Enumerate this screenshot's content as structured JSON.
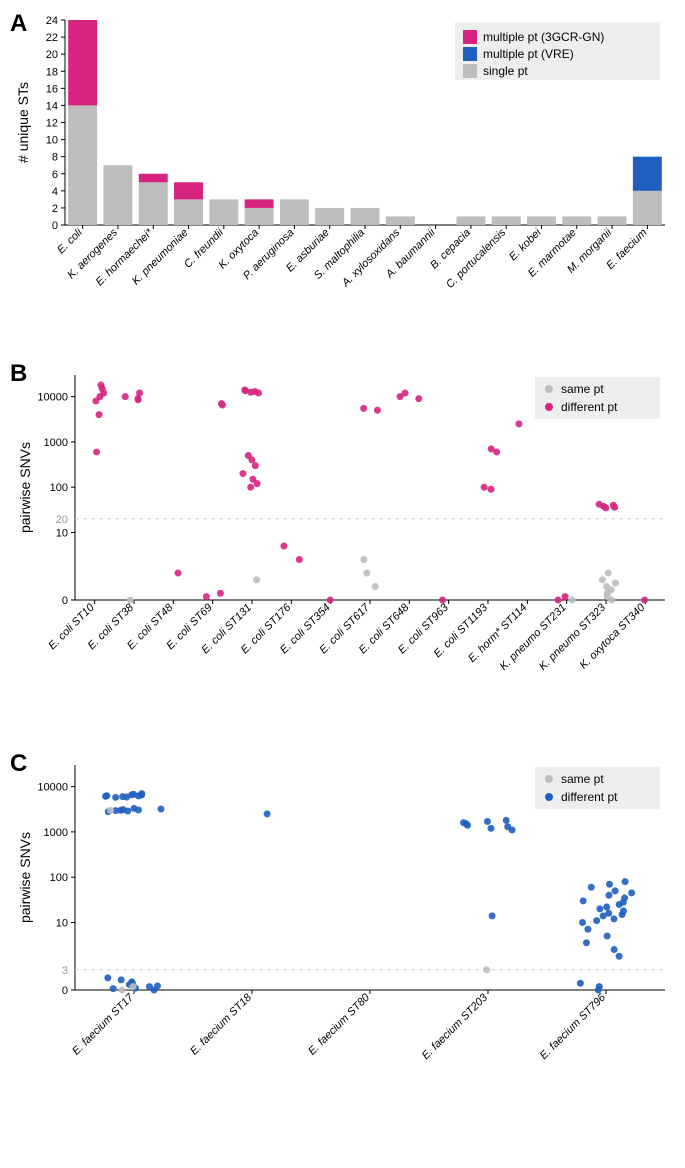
{
  "colors": {
    "magenta": "#d6237f",
    "blue": "#1f5fbf",
    "grey": "#bdbdbd",
    "legend_bg": "#eeeeee",
    "grid": "#cccccc",
    "text": "#000000",
    "threshold_text": "#999999"
  },
  "panelA": {
    "label": "A",
    "ylabel": "# unique STs",
    "ylim": [
      0,
      24
    ],
    "ytick_step": 2,
    "bar_width": 0.82,
    "legend": {
      "items": [
        {
          "label": "multiple pt (3GCR-GN)",
          "color": "#d6237f"
        },
        {
          "label": "multiple pt (VRE)",
          "color": "#1f5fbf"
        },
        {
          "label": "single pt",
          "color": "#bdbdbd"
        }
      ]
    },
    "categories": [
      "E. coli",
      "K. aerogenes",
      "E. hormaechei*",
      "K. pneumoniae",
      "C. freundii",
      "K. oxytoca",
      "P. aeruginosa",
      "E. asburiae",
      "S. maltophilia",
      "A. xylosoxidans",
      "A. baumannii",
      "B. cepacia",
      "C. portucalensis",
      "E. kobei",
      "E. marmotae",
      "M. morganii",
      "E. faecium"
    ],
    "stacks": [
      {
        "single": 14,
        "multi_gn": 10,
        "multi_vre": 0
      },
      {
        "single": 7,
        "multi_gn": 0,
        "multi_vre": 0
      },
      {
        "single": 5,
        "multi_gn": 1,
        "multi_vre": 0
      },
      {
        "single": 3,
        "multi_gn": 2,
        "multi_vre": 0
      },
      {
        "single": 3,
        "multi_gn": 0,
        "multi_vre": 0
      },
      {
        "single": 2,
        "multi_gn": 1,
        "multi_vre": 0
      },
      {
        "single": 3,
        "multi_gn": 0,
        "multi_vre": 0
      },
      {
        "single": 2,
        "multi_gn": 0,
        "multi_vre": 0
      },
      {
        "single": 2,
        "multi_gn": 0,
        "multi_vre": 0
      },
      {
        "single": 1,
        "multi_gn": 0,
        "multi_vre": 0
      },
      {
        "single": 0,
        "multi_gn": 0,
        "multi_vre": 0
      },
      {
        "single": 1,
        "multi_gn": 0,
        "multi_vre": 0
      },
      {
        "single": 1,
        "multi_gn": 0,
        "multi_vre": 0
      },
      {
        "single": 1,
        "multi_gn": 0,
        "multi_vre": 0
      },
      {
        "single": 1,
        "multi_gn": 0,
        "multi_vre": 0
      },
      {
        "single": 1,
        "multi_gn": 0,
        "multi_vre": 0
      },
      {
        "single": 4,
        "multi_gn": 0,
        "multi_vre": 4
      }
    ]
  },
  "panelB": {
    "label": "B",
    "ylabel": "pairwise SNVs",
    "threshold": 20,
    "ylim": [
      0,
      30000
    ],
    "linear_max": 10,
    "yticks_linear": [
      0,
      10
    ],
    "yticks_log": [
      100,
      1000,
      10000
    ],
    "threshold_label": "20",
    "legend": {
      "items": [
        {
          "label": "same pt",
          "color": "#bdbdbd"
        },
        {
          "label": "different pt",
          "color": "#d6237f"
        }
      ]
    },
    "categories": [
      "E. coli ST10",
      "E. coli ST38",
      "E. coli ST48",
      "E. coli ST69",
      "E. coli ST131",
      "E. coli ST176",
      "E. coli ST354",
      "E. coli ST617",
      "E. coli ST648",
      "E. coli ST963",
      "E. coli ST1193",
      "E. horm* ST114",
      "K. pneumo ST231",
      "K. pneumo ST323",
      "K. oxytoca ST340"
    ],
    "points": [
      {
        "cat": 0,
        "y": 15000,
        "grp": "diff"
      },
      {
        "cat": 0,
        "y": 18000,
        "grp": "diff"
      },
      {
        "cat": 0,
        "y": 12000,
        "grp": "diff"
      },
      {
        "cat": 0,
        "y": 10000,
        "grp": "diff"
      },
      {
        "cat": 0,
        "y": 8000,
        "grp": "diff"
      },
      {
        "cat": 0,
        "y": 4000,
        "grp": "diff"
      },
      {
        "cat": 0,
        "y": 600,
        "grp": "diff"
      },
      {
        "cat": 1,
        "y": 10000,
        "grp": "diff"
      },
      {
        "cat": 1,
        "y": 9000,
        "grp": "diff"
      },
      {
        "cat": 1,
        "y": 12000,
        "grp": "diff"
      },
      {
        "cat": 1,
        "y": 8500,
        "grp": "diff"
      },
      {
        "cat": 1,
        "y": 0,
        "grp": "same"
      },
      {
        "cat": 2,
        "y": 4,
        "grp": "diff"
      },
      {
        "cat": 3,
        "y": 7000,
        "grp": "diff"
      },
      {
        "cat": 3,
        "y": 6500,
        "grp": "diff"
      },
      {
        "cat": 3,
        "y": 1,
        "grp": "diff"
      },
      {
        "cat": 3,
        "y": 0.5,
        "grp": "diff"
      },
      {
        "cat": 4,
        "y": 14000,
        "grp": "diff"
      },
      {
        "cat": 4,
        "y": 13000,
        "grp": "diff"
      },
      {
        "cat": 4,
        "y": 12000,
        "grp": "diff"
      },
      {
        "cat": 4,
        "y": 13500,
        "grp": "diff"
      },
      {
        "cat": 4,
        "y": 12500,
        "grp": "diff"
      },
      {
        "cat": 4,
        "y": 500,
        "grp": "diff"
      },
      {
        "cat": 4,
        "y": 400,
        "grp": "diff"
      },
      {
        "cat": 4,
        "y": 300,
        "grp": "diff"
      },
      {
        "cat": 4,
        "y": 200,
        "grp": "diff"
      },
      {
        "cat": 4,
        "y": 150,
        "grp": "diff"
      },
      {
        "cat": 4,
        "y": 120,
        "grp": "diff"
      },
      {
        "cat": 4,
        "y": 100,
        "grp": "diff"
      },
      {
        "cat": 4,
        "y": 3,
        "grp": "same"
      },
      {
        "cat": 5,
        "y": 8,
        "grp": "diff"
      },
      {
        "cat": 5,
        "y": 6,
        "grp": "diff"
      },
      {
        "cat": 6,
        "y": 0,
        "grp": "diff"
      },
      {
        "cat": 7,
        "y": 5500,
        "grp": "diff"
      },
      {
        "cat": 7,
        "y": 5000,
        "grp": "diff"
      },
      {
        "cat": 7,
        "y": 6,
        "grp": "same"
      },
      {
        "cat": 7,
        "y": 4,
        "grp": "same"
      },
      {
        "cat": 7,
        "y": 2,
        "grp": "same"
      },
      {
        "cat": 8,
        "y": 12000,
        "grp": "diff"
      },
      {
        "cat": 8,
        "y": 10000,
        "grp": "diff"
      },
      {
        "cat": 8,
        "y": 9000,
        "grp": "diff"
      },
      {
        "cat": 9,
        "y": 0,
        "grp": "diff"
      },
      {
        "cat": 10,
        "y": 700,
        "grp": "diff"
      },
      {
        "cat": 10,
        "y": 600,
        "grp": "diff"
      },
      {
        "cat": 10,
        "y": 100,
        "grp": "diff"
      },
      {
        "cat": 10,
        "y": 90,
        "grp": "diff"
      },
      {
        "cat": 11,
        "y": 2500,
        "grp": "diff"
      },
      {
        "cat": 12,
        "y": 0,
        "grp": "diff"
      },
      {
        "cat": 12,
        "y": 0.5,
        "grp": "diff"
      },
      {
        "cat": 12,
        "y": 0,
        "grp": "same"
      },
      {
        "cat": 13,
        "y": 40,
        "grp": "diff"
      },
      {
        "cat": 13,
        "y": 38,
        "grp": "diff"
      },
      {
        "cat": 13,
        "y": 35,
        "grp": "diff"
      },
      {
        "cat": 13,
        "y": 42,
        "grp": "diff"
      },
      {
        "cat": 13,
        "y": 36,
        "grp": "diff"
      },
      {
        "cat": 13,
        "y": 4,
        "grp": "same"
      },
      {
        "cat": 13,
        "y": 3,
        "grp": "same"
      },
      {
        "cat": 13,
        "y": 2,
        "grp": "same"
      },
      {
        "cat": 13,
        "y": 1,
        "grp": "same"
      },
      {
        "cat": 13,
        "y": 0,
        "grp": "same"
      },
      {
        "cat": 13,
        "y": 0.5,
        "grp": "same"
      },
      {
        "cat": 13,
        "y": 1.5,
        "grp": "same"
      },
      {
        "cat": 13,
        "y": 2.5,
        "grp": "same"
      },
      {
        "cat": 14,
        "y": 0,
        "grp": "diff"
      }
    ]
  },
  "panelC": {
    "label": "C",
    "ylabel": "pairwise SNVs",
    "threshold": 3,
    "ylim": [
      0,
      30000
    ],
    "linear_max": 10,
    "yticks_linear": [
      0,
      10
    ],
    "yticks_log": [
      100,
      1000,
      10000
    ],
    "threshold_label": "3",
    "legend": {
      "items": [
        {
          "label": "same pt",
          "color": "#bdbdbd"
        },
        {
          "label": "different pt",
          "color": "#1f5fbf"
        }
      ]
    },
    "categories": [
      "E. faecium ST17",
      "E. faecium ST18",
      "E. faecium ST80",
      "E. faecium ST203",
      "E. faecium ST796"
    ],
    "points": [
      {
        "cat": 0,
        "y": 6500,
        "grp": "diff"
      },
      {
        "cat": 0,
        "y": 6000,
        "grp": "diff"
      },
      {
        "cat": 0,
        "y": 7000,
        "grp": "diff"
      },
      {
        "cat": 0,
        "y": 6200,
        "grp": "diff"
      },
      {
        "cat": 0,
        "y": 5800,
        "grp": "diff"
      },
      {
        "cat": 0,
        "y": 6800,
        "grp": "diff"
      },
      {
        "cat": 0,
        "y": 6100,
        "grp": "diff"
      },
      {
        "cat": 0,
        "y": 6300,
        "grp": "diff"
      },
      {
        "cat": 0,
        "y": 6600,
        "grp": "diff"
      },
      {
        "cat": 0,
        "y": 5900,
        "grp": "diff"
      },
      {
        "cat": 0,
        "y": 3000,
        "grp": "diff"
      },
      {
        "cat": 0,
        "y": 3200,
        "grp": "diff"
      },
      {
        "cat": 0,
        "y": 2800,
        "grp": "diff"
      },
      {
        "cat": 0,
        "y": 3100,
        "grp": "diff"
      },
      {
        "cat": 0,
        "y": 2900,
        "grp": "diff"
      },
      {
        "cat": 0,
        "y": 3300,
        "grp": "diff"
      },
      {
        "cat": 0,
        "y": 3050,
        "grp": "diff"
      },
      {
        "cat": 0,
        "y": 2950,
        "grp": "diff"
      },
      {
        "cat": 0,
        "y": 3000,
        "grp": "same"
      },
      {
        "cat": 0,
        "y": 1,
        "grp": "diff"
      },
      {
        "cat": 0,
        "y": 0.5,
        "grp": "diff"
      },
      {
        "cat": 0,
        "y": 1.5,
        "grp": "diff"
      },
      {
        "cat": 0,
        "y": 0.8,
        "grp": "diff"
      },
      {
        "cat": 0,
        "y": 0.3,
        "grp": "diff"
      },
      {
        "cat": 0,
        "y": 1.2,
        "grp": "diff"
      },
      {
        "cat": 0,
        "y": 0,
        "grp": "diff"
      },
      {
        "cat": 0,
        "y": 0.6,
        "grp": "diff"
      },
      {
        "cat": 0,
        "y": 1.8,
        "grp": "diff"
      },
      {
        "cat": 0,
        "y": 0.2,
        "grp": "diff"
      },
      {
        "cat": 0,
        "y": 0,
        "grp": "same"
      },
      {
        "cat": 0,
        "y": 0.5,
        "grp": "same"
      },
      {
        "cat": 1,
        "y": 2500,
        "grp": "diff"
      },
      {
        "cat": 3,
        "y": 1500,
        "grp": "diff"
      },
      {
        "cat": 3,
        "y": 1400,
        "grp": "diff"
      },
      {
        "cat": 3,
        "y": 1600,
        "grp": "diff"
      },
      {
        "cat": 3,
        "y": 1300,
        "grp": "diff"
      },
      {
        "cat": 3,
        "y": 1700,
        "grp": "diff"
      },
      {
        "cat": 3,
        "y": 1200,
        "grp": "diff"
      },
      {
        "cat": 3,
        "y": 1800,
        "grp": "diff"
      },
      {
        "cat": 3,
        "y": 1100,
        "grp": "diff"
      },
      {
        "cat": 3,
        "y": 14,
        "grp": "diff"
      },
      {
        "cat": 3,
        "y": 3,
        "grp": "same"
      },
      {
        "cat": 4,
        "y": 80,
        "grp": "diff"
      },
      {
        "cat": 4,
        "y": 70,
        "grp": "diff"
      },
      {
        "cat": 4,
        "y": 60,
        "grp": "diff"
      },
      {
        "cat": 4,
        "y": 50,
        "grp": "diff"
      },
      {
        "cat": 4,
        "y": 45,
        "grp": "diff"
      },
      {
        "cat": 4,
        "y": 40,
        "grp": "diff"
      },
      {
        "cat": 4,
        "y": 35,
        "grp": "diff"
      },
      {
        "cat": 4,
        "y": 30,
        "grp": "diff"
      },
      {
        "cat": 4,
        "y": 28,
        "grp": "diff"
      },
      {
        "cat": 4,
        "y": 25,
        "grp": "diff"
      },
      {
        "cat": 4,
        "y": 22,
        "grp": "diff"
      },
      {
        "cat": 4,
        "y": 20,
        "grp": "diff"
      },
      {
        "cat": 4,
        "y": 18,
        "grp": "diff"
      },
      {
        "cat": 4,
        "y": 16,
        "grp": "diff"
      },
      {
        "cat": 4,
        "y": 15,
        "grp": "diff"
      },
      {
        "cat": 4,
        "y": 14,
        "grp": "diff"
      },
      {
        "cat": 4,
        "y": 12,
        "grp": "diff"
      },
      {
        "cat": 4,
        "y": 11,
        "grp": "diff"
      },
      {
        "cat": 4,
        "y": 10,
        "grp": "diff"
      },
      {
        "cat": 4,
        "y": 9,
        "grp": "diff"
      },
      {
        "cat": 4,
        "y": 8,
        "grp": "diff"
      },
      {
        "cat": 4,
        "y": 7,
        "grp": "diff"
      },
      {
        "cat": 4,
        "y": 6,
        "grp": "diff"
      },
      {
        "cat": 4,
        "y": 5,
        "grp": "diff"
      },
      {
        "cat": 4,
        "y": 1,
        "grp": "diff"
      },
      {
        "cat": 4,
        "y": 0.5,
        "grp": "diff"
      },
      {
        "cat": 4,
        "y": 0,
        "grp": "diff"
      }
    ]
  }
}
